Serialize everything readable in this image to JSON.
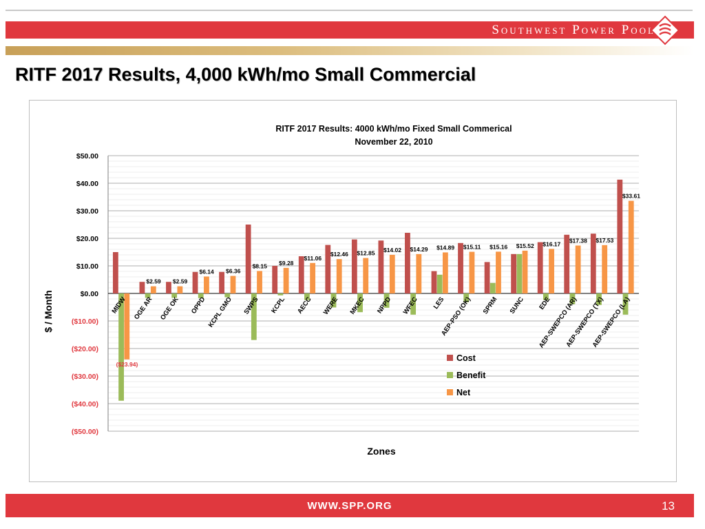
{
  "header": {
    "brand": "Southwest Power Pool",
    "colors": {
      "band": "#e0383e",
      "gold": "#c8a058"
    }
  },
  "slide": {
    "title": "RITF 2017 Results, 4,000 kWh/mo Small Commercial"
  },
  "footer": {
    "url": "WWW.SPP.ORG",
    "page_number": "13"
  },
  "chart_data": {
    "type": "bar",
    "title_line1": "RITF 2017 Results: 4000 kWh/mo Fixed Small Commerical",
    "title_line2": "November 22, 2010",
    "xlabel": "Zones",
    "ylabel": "$ / Month",
    "ylim": [
      -50,
      50
    ],
    "yticks": [
      50,
      40,
      30,
      20,
      10,
      0,
      -10,
      -20,
      -30,
      -40,
      -50
    ],
    "ytick_labels": [
      "$50.00",
      "$40.00",
      "$30.00",
      "$20.00",
      "$10.00",
      "$0.00",
      "($10.00)",
      "($20.00)",
      "($30.00)",
      "($40.00)",
      "($50.00)"
    ],
    "minor_grid_step": 2,
    "categories": [
      "MIDW",
      "OGE AR",
      "OGE OK",
      "OPPD",
      "KCPL GMO",
      "SWPS",
      "KCPL",
      "AECC",
      "WERE",
      "MKEC",
      "NPPD",
      "WFEC",
      "LES",
      "AEP-PSO (OK)",
      "SPRM",
      "SUNC",
      "EDE",
      "AEP-SWEPCO (AR)",
      "AEP-SWEPCO (TX)",
      "AEP-SWEPCO (LA)"
    ],
    "series": [
      {
        "name": "Cost",
        "color": "#c0504d",
        "values": [
          15.0,
          4.2,
          4.2,
          7.8,
          7.8,
          25.0,
          10.0,
          13.5,
          17.6,
          19.6,
          19.2,
          22.0,
          8.1,
          18.3,
          11.4,
          14.3,
          18.6,
          21.3,
          21.7,
          41.3
        ]
      },
      {
        "name": "Benefit",
        "color": "#9bbb59",
        "values": [
          -38.94,
          -1.6,
          -1.6,
          -1.7,
          -1.4,
          -16.9,
          -0.7,
          -2.4,
          -5.1,
          -6.8,
          -5.2,
          -7.7,
          6.8,
          -3.2,
          3.8,
          14.3,
          -2.4,
          -3.9,
          -4.2,
          -7.7
        ]
      },
      {
        "name": "Net",
        "color": "#f79646",
        "values": [
          -23.94,
          2.59,
          2.59,
          6.14,
          6.36,
          8.15,
          9.28,
          11.06,
          12.46,
          12.85,
          14.02,
          14.29,
          14.89,
          15.11,
          15.16,
          15.52,
          16.17,
          17.38,
          17.53,
          33.61
        ]
      }
    ],
    "net_labels": [
      "($23.94)",
      "$2.59",
      "$2.59",
      "$6.14",
      "$6.36",
      "$8.15",
      "$9.28",
      "$11.06",
      "$12.46",
      "$12.85",
      "$14.02",
      "$14.29",
      "$14.89",
      "$15.11",
      "$15.16",
      "$15.52",
      "$16.17",
      "$17.38",
      "$17.53",
      "$33.61"
    ],
    "legend": {
      "placement": "center-bottom",
      "entries": [
        "Cost",
        "Benefit",
        "Net"
      ]
    },
    "colors": {
      "negative_label": "#e0383e"
    }
  }
}
